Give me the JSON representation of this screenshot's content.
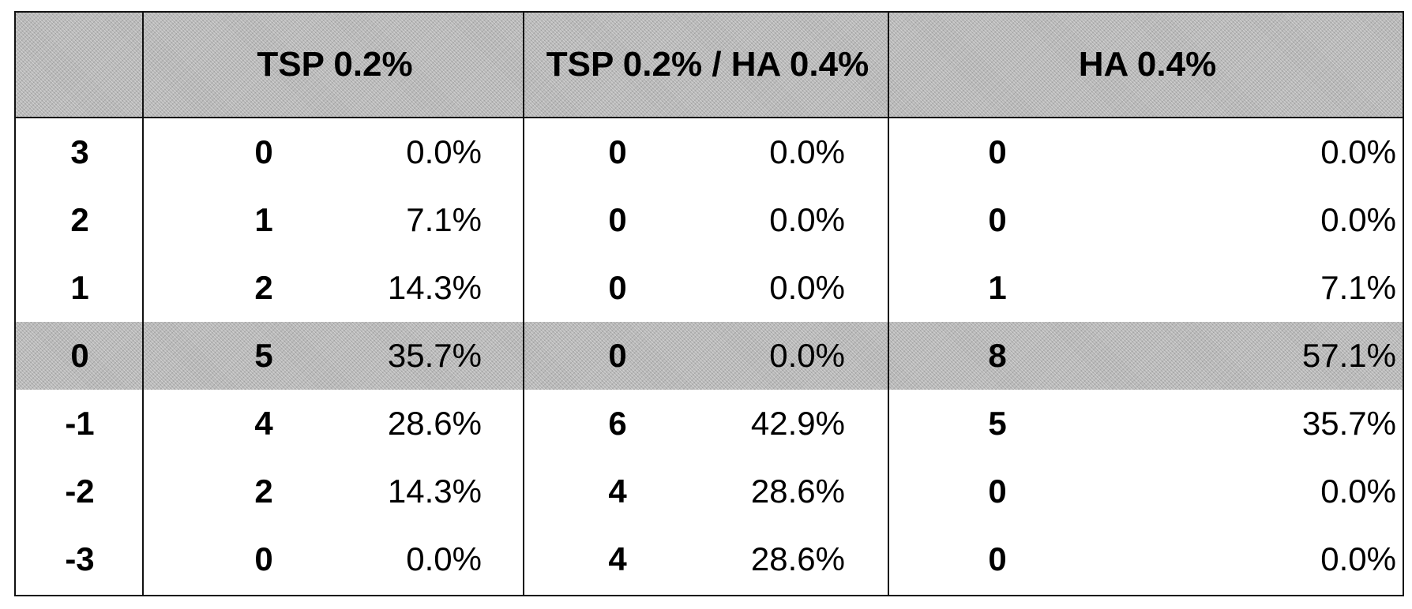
{
  "table": {
    "headers": [
      "",
      "TSP 0.2%",
      "TSP 0.2% / HA 0.4%",
      "HA 0.4%"
    ],
    "rows": [
      {
        "label": "3",
        "tsp_count": "0",
        "tsp_pct": "0.0%",
        "mix_count": "0",
        "mix_pct": "0.0%",
        "ha_count": "0",
        "ha_pct": "0.0%",
        "highlighted": false
      },
      {
        "label": "2",
        "tsp_count": "1",
        "tsp_pct": "7.1%",
        "mix_count": "0",
        "mix_pct": "0.0%",
        "ha_count": "0",
        "ha_pct": "0.0%",
        "highlighted": false
      },
      {
        "label": "1",
        "tsp_count": "2",
        "tsp_pct": "14.3%",
        "mix_count": "0",
        "mix_pct": "0.0%",
        "ha_count": "1",
        "ha_pct": "7.1%",
        "highlighted": false
      },
      {
        "label": "0",
        "tsp_count": "5",
        "tsp_pct": "35.7%",
        "mix_count": "0",
        "mix_pct": "0.0%",
        "ha_count": "8",
        "ha_pct": "57.1%",
        "highlighted": true
      },
      {
        "label": "-1",
        "tsp_count": "4",
        "tsp_pct": "28.6%",
        "mix_count": "6",
        "mix_pct": "42.9%",
        "ha_count": "5",
        "ha_pct": "35.7%",
        "highlighted": false
      },
      {
        "label": "-2",
        "tsp_count": "2",
        "tsp_pct": "14.3%",
        "mix_count": "4",
        "mix_pct": "28.6%",
        "ha_count": "0",
        "ha_pct": "0.0%",
        "highlighted": false
      },
      {
        "label": "-3",
        "tsp_count": "0",
        "tsp_pct": "0.0%",
        "mix_count": "4",
        "mix_pct": "28.6%",
        "ha_count": "0",
        "ha_pct": "0.0%",
        "highlighted": false
      }
    ]
  },
  "colors": {
    "header_shade": "#b8b8b8",
    "border": "#111111"
  }
}
